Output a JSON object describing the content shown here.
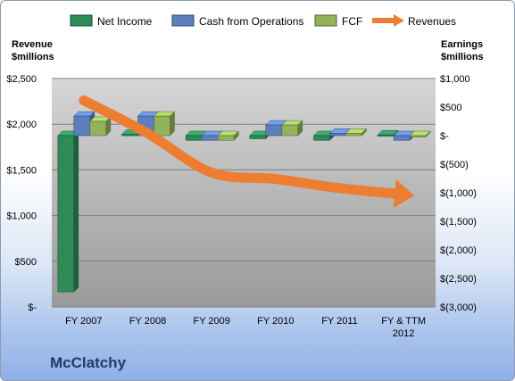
{
  "chart_data": {
    "type": "bar",
    "title": "McClatchy",
    "categories": [
      "FY 2007",
      "FY 2008",
      "FY 2009",
      "FY 2010",
      "FY 2011",
      "FY & TTM 2012"
    ],
    "left_axis": {
      "title": [
        "Revenue",
        "$millions"
      ],
      "ylim": [
        0,
        2500
      ],
      "ticks": [
        0,
        500,
        1000,
        1500,
        2000,
        2500
      ],
      "tick_labels": [
        "$-",
        "$500",
        "$1,000",
        "$1,500",
        "$2,000",
        "$2,500"
      ]
    },
    "right_axis": {
      "title": [
        "Earnings",
        "$millions"
      ],
      "ylim": [
        -3000,
        1000
      ],
      "ticks": [
        -3000,
        -2500,
        -2000,
        -1500,
        -1000,
        -500,
        0,
        500,
        1000
      ],
      "tick_labels": [
        "$(3,000)",
        "$(2,500)",
        "$(2,000)",
        "$(1,500)",
        "$(1,000)",
        "$(500)",
        "$-",
        "$500",
        "$1,000"
      ]
    },
    "series": [
      {
        "name": "Net Income",
        "type": "bar",
        "axis": "right",
        "color": "#2e8b57",
        "values": [
          -2736,
          22,
          -82,
          -54,
          -82,
          14
        ]
      },
      {
        "name": "Cash from Operations",
        "type": "bar",
        "axis": "right",
        "color": "#5b7fbf",
        "values": [
          342,
          342,
          -82,
          186,
          42,
          -82
        ]
      },
      {
        "name": "FCF",
        "type": "bar",
        "axis": "right",
        "color": "#92b35a",
        "values": [
          250,
          342,
          -82,
          186,
          42,
          -22
        ]
      },
      {
        "name": "Revenues",
        "type": "line",
        "axis": "left",
        "color": "#ed7d31",
        "values": [
          2260,
          1900,
          1470,
          1400,
          1300,
          1230
        ]
      }
    ],
    "grid": true,
    "legend": "top"
  },
  "colors": {
    "plot_background": "#c8c8c8",
    "gridline": "#7f7f7f",
    "title_color": "#1f3a6e"
  }
}
